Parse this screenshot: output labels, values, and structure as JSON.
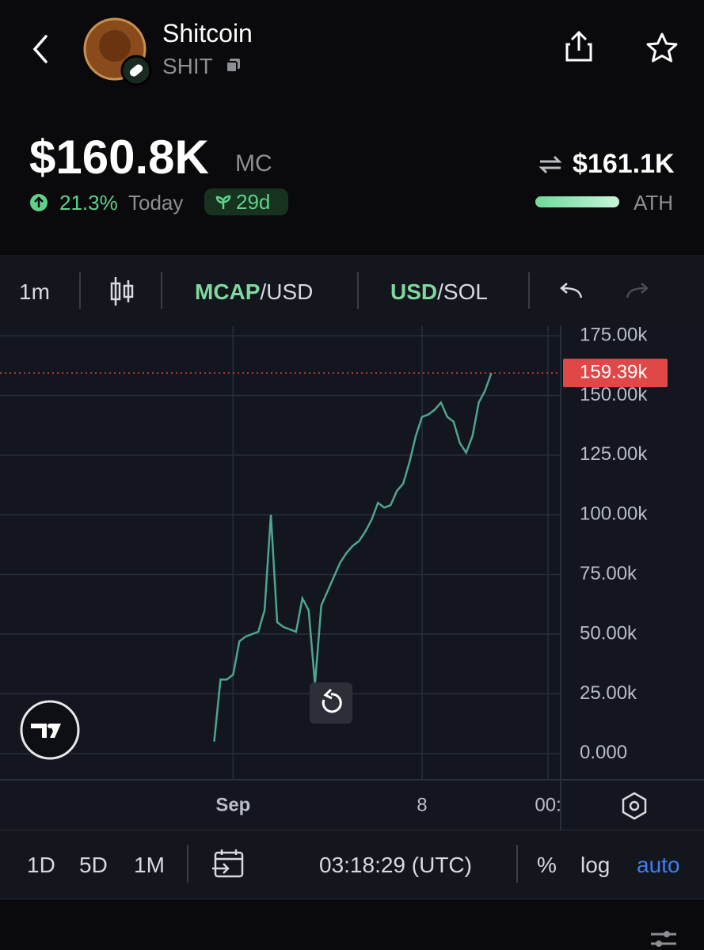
{
  "header": {
    "name": "Shitcoin",
    "ticker": "SHIT"
  },
  "stats": {
    "market_cap": "$160.8K",
    "market_cap_unit": "MC",
    "change": "21.3%",
    "change_period": "Today",
    "age": "29d",
    "ath_value": "$161.1K",
    "ath_label": "ATH"
  },
  "toolbar": {
    "interval": "1m",
    "mcap": "MCAP",
    "mcap_quote": "/USD",
    "usd": "USD",
    "usd_quote": "/SOL"
  },
  "footer": {
    "ranges": [
      "1D",
      "5D",
      "1M"
    ],
    "time": "03:18:29 (UTC)",
    "percent": "%",
    "log": "log",
    "auto": "auto"
  },
  "chart_data": {
    "type": "line",
    "x": [
      0,
      1,
      2,
      3,
      4,
      5,
      6,
      7,
      8,
      9,
      10,
      11,
      12,
      13,
      14,
      15,
      16,
      17,
      18,
      19,
      20,
      21,
      22,
      23,
      24,
      25,
      26,
      27,
      28,
      29,
      30,
      31,
      32,
      33,
      34,
      35,
      36,
      37,
      38,
      39,
      40,
      41,
      42,
      43,
      44
    ],
    "series": [
      {
        "color": "#4ea58e",
        "values": [
          5000,
          31000,
          31000,
          33000,
          47000,
          49000,
          50000,
          51000,
          60000,
          100000,
          55000,
          53000,
          52000,
          51000,
          65000,
          60000,
          29000,
          62000,
          68000,
          74000,
          80000,
          84000,
          87000,
          89000,
          93000,
          98000,
          105000,
          103000,
          104000,
          110000,
          113000,
          122000,
          133000,
          141000,
          142000,
          144000,
          147000,
          141000,
          139000,
          130000,
          126000,
          133000,
          147000,
          152000,
          159390
        ]
      }
    ],
    "xlim": [
      -34,
      55
    ],
    "xticks": [
      {
        "value": 3,
        "label": "Sep"
      },
      {
        "value": 33,
        "label": "8"
      },
      {
        "value": 53,
        "label": "00:"
      }
    ],
    "ylim": [
      -11000,
      179000
    ],
    "yticks": [
      {
        "value": 0,
        "label": "0.000"
      },
      {
        "value": 25000,
        "label": "25.00k"
      },
      {
        "value": 50000,
        "label": "50.00k"
      },
      {
        "value": 75000,
        "label": "75.00k"
      },
      {
        "value": 100000,
        "label": "100.00k"
      },
      {
        "value": 125000,
        "label": "125.00k"
      },
      {
        "value": 150000,
        "label": "150.00k"
      },
      {
        "value": 175000,
        "label": "175.00k"
      }
    ],
    "last_price": {
      "value": 159390,
      "label": "159.39k",
      "color": "#e04848"
    },
    "grid": true
  }
}
